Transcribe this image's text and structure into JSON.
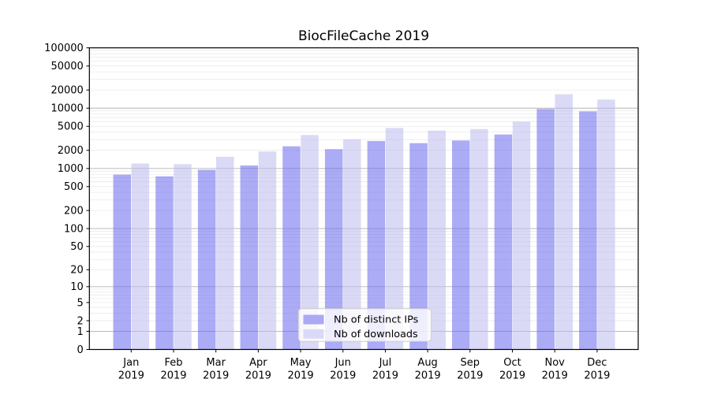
{
  "title": "BiocFileCache 2019",
  "year_label": "2019",
  "legend": {
    "items": [
      {
        "label": "Nb of distinct IPs",
        "series": "distinct_ips"
      },
      {
        "label": "Nb of downloads",
        "series": "downloads"
      }
    ]
  },
  "colors": {
    "distinct_ips": "rgba(102,102,238,0.55)",
    "downloads": "rgba(187,187,238,0.55)",
    "distinct_ips_solid": "#a9a9f4",
    "downloads_solid": "#dadaf7",
    "grid_major": "#b3b3b3",
    "grid_minor": "#e7e7e7",
    "axis": "#000000",
    "text": "#000000",
    "legend_border": "#cccccc",
    "legend_bg": "rgba(255,255,255,0.8)"
  },
  "chart_data": {
    "type": "bar",
    "title": "BiocFileCache 2019",
    "x_categories": [
      "Jan 2019",
      "Feb 2019",
      "Mar 2019",
      "Apr 2019",
      "May 2019",
      "Jun 2019",
      "Jul 2019",
      "Aug 2019",
      "Sep 2019",
      "Oct 2019",
      "Nov 2019",
      "Dec 2019"
    ],
    "months": [
      "Jan",
      "Feb",
      "Mar",
      "Apr",
      "May",
      "Jun",
      "Jul",
      "Aug",
      "Sep",
      "Oct",
      "Nov",
      "Dec"
    ],
    "year": "2019",
    "series": [
      {
        "name": "Nb of distinct IPs",
        "values": [
          790,
          740,
          950,
          1120,
          2330,
          2090,
          2850,
          2630,
          2910,
          3660,
          9700,
          8850
        ]
      },
      {
        "name": "Nb of downloads",
        "values": [
          1210,
          1180,
          1560,
          1910,
          3590,
          3050,
          4700,
          4250,
          4500,
          5980,
          17000,
          13900
        ]
      }
    ],
    "y_scale": "log10(1+v)",
    "y_ticks": [
      100000,
      50000,
      20000,
      10000,
      5000,
      2000,
      1000,
      500,
      200,
      100,
      50,
      20,
      10,
      5,
      2,
      1,
      0
    ],
    "ylim": [
      0,
      100000
    ],
    "grid": "horizontal, major at decades + minor at 2-9 per decade",
    "legend_position": "lower center"
  }
}
